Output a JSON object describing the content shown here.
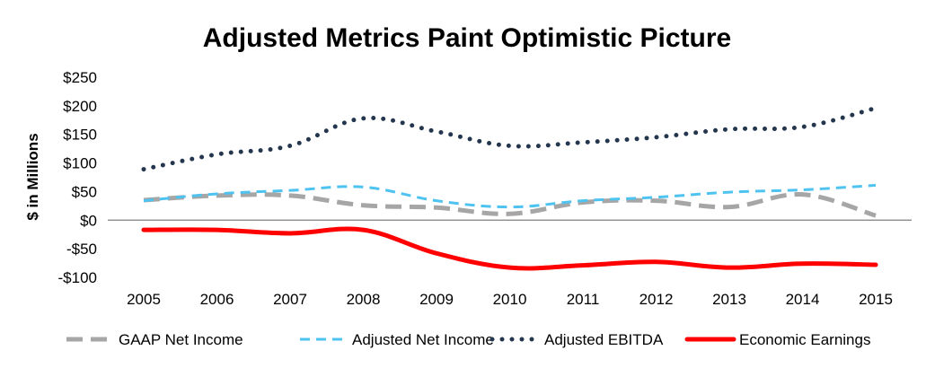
{
  "chart_data": {
    "type": "line",
    "title": "Adjusted Metrics Paint Optimistic Picture",
    "xlabel": "",
    "ylabel": "$ in Millions",
    "x": [
      2005,
      2006,
      2007,
      2008,
      2009,
      2010,
      2011,
      2012,
      2013,
      2014,
      2015
    ],
    "ylim": [
      -100,
      250
    ],
    "yticks": [
      250,
      200,
      150,
      100,
      50,
      0,
      -50,
      -100
    ],
    "ytick_labels": [
      "$250",
      "$200",
      "$150",
      "$100",
      "$50",
      "$0",
      "-$50",
      "-$100"
    ],
    "grid": false,
    "legend_position": "bottom",
    "series": [
      {
        "name": "GAAP Net Income",
        "color": "#a6a6a6",
        "style": "long-dash",
        "values": [
          35,
          43,
          43,
          26,
          22,
          11,
          31,
          34,
          23,
          45,
          8
        ]
      },
      {
        "name": "Adjusted Net Income",
        "color": "#4fc3f0",
        "style": "dash",
        "values": [
          34,
          46,
          52,
          58,
          34,
          23,
          34,
          40,
          49,
          53,
          61
        ]
      },
      {
        "name": "Adjusted EBITDA",
        "color": "#24364e",
        "style": "dot",
        "values": [
          89,
          115,
          130,
          178,
          155,
          130,
          136,
          145,
          159,
          163,
          196
        ]
      },
      {
        "name": "Economic Earnings",
        "color": "#ff0000",
        "style": "solid",
        "values": [
          -17,
          -17,
          -23,
          -17,
          -58,
          -83,
          -79,
          -73,
          -83,
          -76,
          -78
        ]
      }
    ]
  }
}
